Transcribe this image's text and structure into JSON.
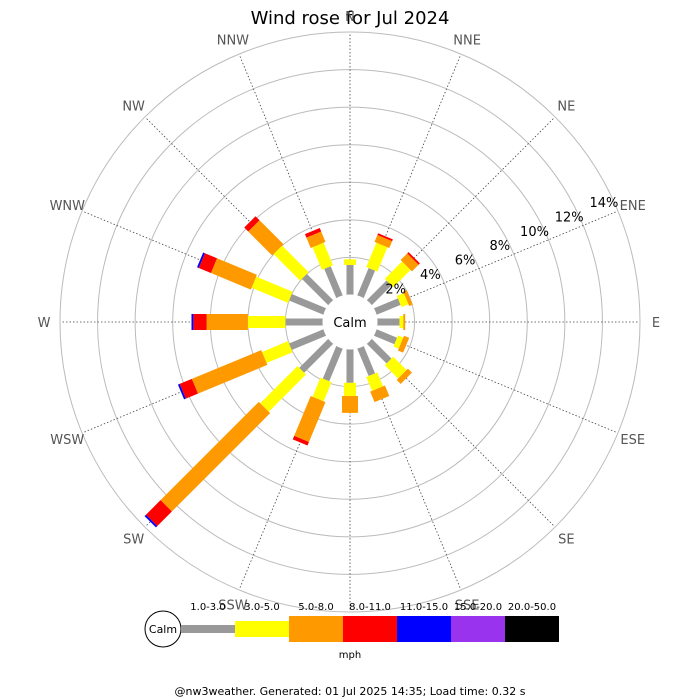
{
  "chart_data": {
    "type": "windrose",
    "title": "Wind rose for Jul 2024",
    "directions": [
      "N",
      "NNE",
      "NE",
      "ENE",
      "E",
      "ESE",
      "SE",
      "SSE",
      "S",
      "SSW",
      "SW",
      "WSW",
      "W",
      "WNW",
      "NW",
      "NNW"
    ],
    "direction_angles_deg": [
      0,
      22.5,
      45,
      67.5,
      90,
      112.5,
      135,
      157.5,
      180,
      202.5,
      225,
      247.5,
      270,
      292.5,
      315,
      337.5
    ],
    "radial_ticks": [
      "2%",
      "4%",
      "6%",
      "8%",
      "10%",
      "12%",
      "14%"
    ],
    "radial_tick_values": [
      2,
      4,
      6,
      8,
      10,
      12,
      14
    ],
    "rmax": 14,
    "calm_label": "Calm",
    "units": "mph",
    "bins": [
      {
        "label": "1.0-3.0",
        "color": "#999999"
      },
      {
        "label": "3.0-5.0",
        "color": "#ffff00"
      },
      {
        "label": "5.0-8.0",
        "color": "#ff9900"
      },
      {
        "label": "8.0-11.0",
        "color": "#ff0000"
      },
      {
        "label": "11.0-15.0",
        "color": "#0000ff"
      },
      {
        "label": "15.0-20.0",
        "color": "#9933ee"
      },
      {
        "label": "20.0-50.0",
        "color": "#000000"
      }
    ],
    "cumulative_percent": [
      [
        1.6,
        1.9,
        1.9,
        1.9,
        1.9,
        1.9,
        1.9
      ],
      [
        1.6,
        3.0,
        3.4,
        3.5,
        3.5,
        3.5,
        3.5
      ],
      [
        1.5,
        2.8,
        3.3,
        3.4,
        3.4,
        3.4,
        3.4
      ],
      [
        1.4,
        1.8,
        2.0,
        2.0,
        2.0,
        2.0,
        2.0
      ],
      [
        1.2,
        1.4,
        1.5,
        1.5,
        1.5,
        1.5,
        1.5
      ],
      [
        1.2,
        1.5,
        1.8,
        1.8,
        1.8,
        1.8,
        1.8
      ],
      [
        1.5,
        2.5,
        2.8,
        2.8,
        2.8,
        2.8,
        2.8
      ],
      [
        1.6,
        2.4,
        3.0,
        3.0,
        3.0,
        3.0,
        3.0
      ],
      [
        1.8,
        2.5,
        3.4,
        3.4,
        3.4,
        3.4,
        3.4
      ],
      [
        1.9,
        3.0,
        5.3,
        5.5,
        5.5,
        5.5,
        5.5
      ],
      [
        2.2,
        5.0,
        12.4,
        13.5,
        13.6,
        13.6,
        13.6
      ],
      [
        2.0,
        3.5,
        7.5,
        8.2,
        8.3,
        8.3,
        8.3
      ],
      [
        2.0,
        4.0,
        6.2,
        6.9,
        7.0,
        7.0,
        7.0
      ],
      [
        2.0,
        4.1,
        6.4,
        7.1,
        7.2,
        7.2,
        7.2
      ],
      [
        2.0,
        4.0,
        5.8,
        6.1,
        6.1,
        6.1,
        6.1
      ],
      [
        1.7,
        3.0,
        3.6,
        3.8,
        3.8,
        3.8,
        3.8
      ]
    ]
  },
  "footer": "@nw3weather. Generated: 01 Jul 2025 14:35; Load time: 0.32 s"
}
